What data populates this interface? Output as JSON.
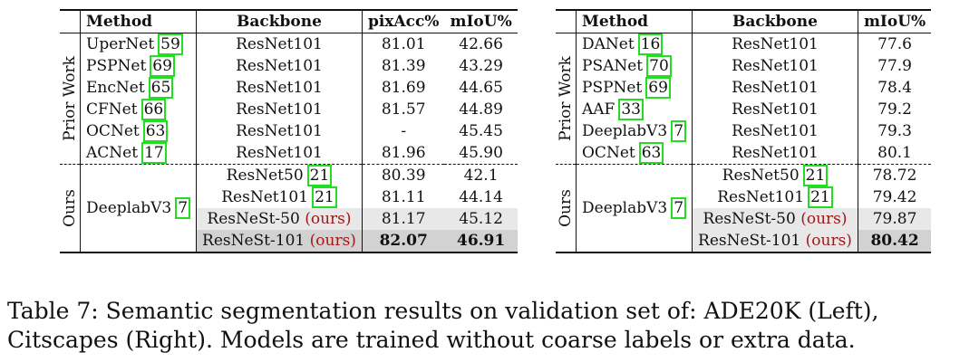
{
  "left_table": {
    "headers": {
      "method": "Method",
      "backbone": "Backbone",
      "pixacc": "pixAcc%",
      "miou": "mIoU%"
    },
    "prior_group_label": "Prior Work",
    "ours_group_label": "Ours",
    "prior_rows": [
      {
        "method": "UperNet",
        "cite": "59",
        "backbone": "ResNet101",
        "pixacc": "81.01",
        "miou": "42.66"
      },
      {
        "method": "PSPNet",
        "cite": "69",
        "backbone": "ResNet101",
        "pixacc": "81.39",
        "miou": "43.29"
      },
      {
        "method": "EncNet",
        "cite": "65",
        "backbone": "ResNet101",
        "pixacc": "81.69",
        "miou": "44.65"
      },
      {
        "method": "CFNet",
        "cite": "66",
        "backbone": "ResNet101",
        "pixacc": "81.57",
        "miou": "44.89"
      },
      {
        "method": "OCNet",
        "cite": "63",
        "backbone": "ResNet101",
        "pixacc": "-",
        "miou": "45.45"
      },
      {
        "method": "ACNet",
        "cite": "17",
        "backbone": "ResNet101",
        "pixacc": "81.96",
        "miou": "45.90"
      }
    ],
    "ours_method": {
      "method": "DeeplabV3",
      "cite": "7"
    },
    "ours_rows": [
      {
        "backbone": "ResNet50",
        "cite": "21",
        "tag": "",
        "pixacc": "80.39",
        "miou": "42.1"
      },
      {
        "backbone": "ResNet101",
        "cite": "21",
        "tag": "",
        "pixacc": "81.11",
        "miou": "44.14"
      },
      {
        "backbone": "ResNeSt-50",
        "cite": "",
        "tag": "(ours)",
        "pixacc": "81.17",
        "miou": "45.12"
      },
      {
        "backbone": "ResNeSt-101",
        "cite": "",
        "tag": "(ours)",
        "pixacc": "82.07",
        "miou": "46.91"
      }
    ]
  },
  "right_table": {
    "headers": {
      "method": "Method",
      "backbone": "Backbone",
      "miou": "mIoU%"
    },
    "prior_group_label": "Prior Work",
    "ours_group_label": "Ours",
    "prior_rows": [
      {
        "method": "DANet",
        "cite": "16",
        "backbone": "ResNet101",
        "miou": "77.6"
      },
      {
        "method": "PSANet",
        "cite": "70",
        "backbone": "ResNet101",
        "miou": "77.9"
      },
      {
        "method": "PSPNet",
        "cite": "69",
        "backbone": "ResNet101",
        "miou": "78.4"
      },
      {
        "method": "AAF",
        "cite": "33",
        "backbone": "ResNet101",
        "miou": "79.2"
      },
      {
        "method": "DeeplabV3",
        "cite": "7",
        "backbone": "ResNet101",
        "miou": "79.3"
      },
      {
        "method": "OCNet",
        "cite": "63",
        "backbone": "ResNet101",
        "miou": "80.1"
      }
    ],
    "ours_method": {
      "method": "DeeplabV3",
      "cite": "7"
    },
    "ours_rows": [
      {
        "backbone": "ResNet50",
        "cite": "21",
        "tag": "",
        "miou": "78.72"
      },
      {
        "backbone": "ResNet101",
        "cite": "21",
        "tag": "",
        "miou": "79.42"
      },
      {
        "backbone": "ResNeSt-50",
        "cite": "",
        "tag": "(ours)",
        "miou": "79.87"
      },
      {
        "backbone": "ResNeSt-101",
        "cite": "",
        "tag": "(ours)",
        "miou": "80.42"
      }
    ]
  },
  "caption": "Table 7: Semantic segmentation results on validation set of: ADE20K (Left), Citscapes (Right). Models are trained without coarse labels or extra data."
}
